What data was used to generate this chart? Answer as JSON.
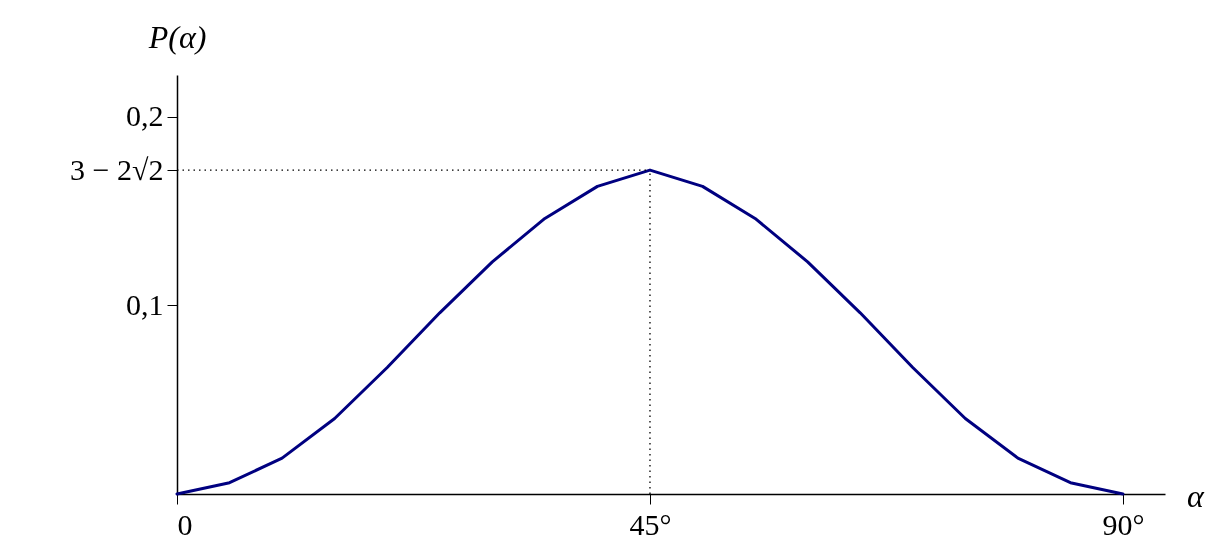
{
  "chart_data": {
    "type": "line",
    "xlabel": "α",
    "ylabel": "P(α)",
    "x": [
      0,
      5,
      10,
      15,
      20,
      25,
      30,
      35,
      40,
      45,
      50,
      55,
      60,
      65,
      70,
      75,
      80,
      85,
      90
    ],
    "series": [
      {
        "color": "#000080",
        "values": [
          0,
          0.006,
          0.019,
          0.04,
          0.067,
          0.096,
          0.123,
          0.146,
          0.163,
          0.1716,
          0.163,
          0.146,
          0.123,
          0.096,
          0.067,
          0.04,
          0.019,
          0.006,
          0
        ]
      }
    ],
    "xlim": [
      0,
      94
    ],
    "ylim": [
      0,
      0.222
    ],
    "xticks": [
      0,
      {
        "value": 45,
        "label": "45°"
      },
      {
        "value": 90,
        "label": "90°"
      }
    ],
    "yticks": [
      {
        "value": 0.1,
        "label": "0,1"
      },
      {
        "value": 0.1716,
        "label": "3 − 2√2"
      },
      {
        "value": 0.2,
        "label": "0,2"
      }
    ],
    "ref_lines": [
      {
        "axis": "y",
        "value": 0.1716,
        "line_style": "dotted"
      },
      {
        "axis": "x",
        "value": 45,
        "line_style": "dotted"
      }
    ],
    "grid": false,
    "marker": "none",
    "line_style": "solid"
  }
}
